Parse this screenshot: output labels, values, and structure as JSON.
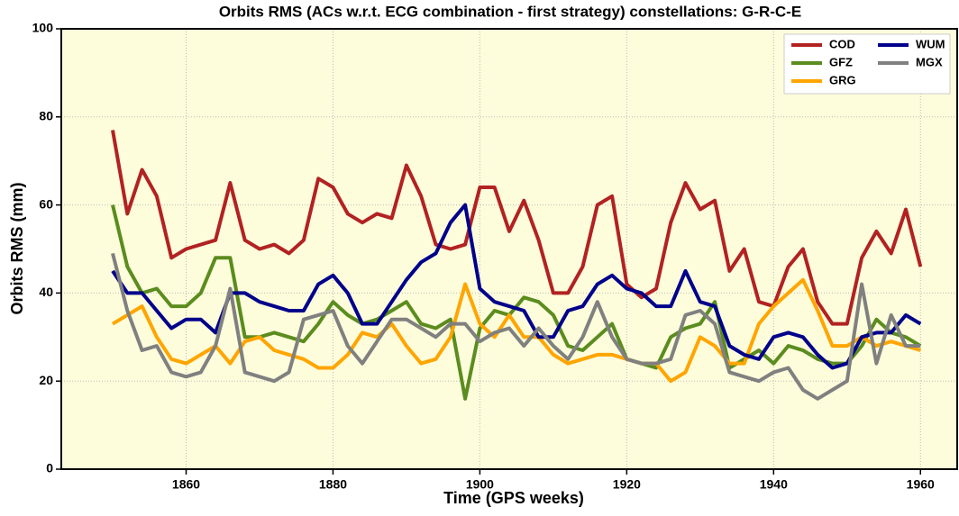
{
  "chart_data": {
    "type": "line",
    "title": "Orbits RMS (ACs w.r.t. ECG combination - first strategy) constellations: G-R-C-E",
    "x_label": "Time (GPS weeks)",
    "y_label": "Orbits RMS (mm)",
    "x": [
      1850,
      1852,
      1854,
      1856,
      1858,
      1860,
      1862,
      1864,
      1866,
      1868,
      1870,
      1872,
      1874,
      1876,
      1878,
      1880,
      1882,
      1884,
      1886,
      1888,
      1890,
      1892,
      1894,
      1896,
      1898,
      1900,
      1902,
      1904,
      1906,
      1908,
      1910,
      1912,
      1914,
      1916,
      1918,
      1920,
      1922,
      1924,
      1926,
      1928,
      1930,
      1932,
      1934,
      1936,
      1938,
      1940,
      1942,
      1944,
      1946,
      1948,
      1950,
      1952,
      1954,
      1956,
      1958,
      1960
    ],
    "series": [
      {
        "name": "COD",
        "color": "#b22222",
        "values": [
          77,
          58,
          68,
          62,
          48,
          50,
          51,
          52,
          65,
          52,
          50,
          51,
          49,
          52,
          66,
          64,
          58,
          56,
          58,
          57,
          69,
          62,
          51,
          50,
          51,
          64,
          64,
          54,
          61,
          52,
          40,
          40,
          46,
          60,
          62,
          42,
          39,
          41,
          56,
          65,
          59,
          61,
          45,
          50,
          38,
          37,
          46,
          50,
          38,
          33,
          33,
          48,
          54,
          49,
          59,
          46
        ]
      },
      {
        "name": "GFZ",
        "color": "#5b8c1e",
        "values": [
          60,
          46,
          40,
          41,
          37,
          37,
          40,
          48,
          48,
          30,
          30,
          31,
          30,
          29,
          33,
          38,
          35,
          33,
          34,
          36,
          38,
          33,
          32,
          34,
          16,
          32,
          36,
          35,
          39,
          38,
          35,
          28,
          27,
          30,
          33,
          25,
          24,
          23,
          30,
          32,
          33,
          38,
          23,
          25,
          27,
          24,
          28,
          27,
          25,
          24,
          24,
          28,
          34,
          31,
          30,
          28
        ]
      },
      {
        "name": "GRG",
        "color": "#ffa500",
        "values": [
          33,
          35,
          37,
          30,
          25,
          24,
          26,
          28,
          24,
          29,
          30,
          27,
          26,
          25,
          23,
          23,
          26,
          31,
          30,
          33,
          28,
          24,
          25,
          30,
          42,
          33,
          30,
          35,
          30,
          30,
          26,
          24,
          25,
          26,
          26,
          25,
          24,
          24,
          20,
          22,
          30,
          28,
          24,
          24,
          33,
          37,
          40,
          43,
          36,
          28,
          28,
          30,
          28,
          29,
          28,
          27
        ]
      },
      {
        "name": "WUM",
        "color": "#00008b",
        "values": [
          45,
          40,
          40,
          36,
          32,
          34,
          34,
          31,
          40,
          40,
          38,
          37,
          36,
          36,
          42,
          44,
          40,
          33,
          33,
          38,
          43,
          47,
          49,
          56,
          60,
          41,
          38,
          37,
          36,
          30,
          30,
          36,
          37,
          42,
          44,
          41,
          40,
          37,
          37,
          45,
          38,
          37,
          28,
          26,
          25,
          30,
          31,
          30,
          26,
          23,
          24,
          30,
          31,
          31,
          35,
          33
        ]
      },
      {
        "name": "MGX",
        "color": "#808080",
        "values": [
          49,
          36,
          27,
          28,
          22,
          21,
          22,
          28,
          41,
          22,
          21,
          20,
          22,
          34,
          35,
          36,
          28,
          24,
          29,
          34,
          34,
          32,
          30,
          33,
          33,
          29,
          31,
          32,
          28,
          32,
          28,
          25,
          30,
          38,
          30,
          25,
          24,
          24,
          25,
          35,
          36,
          33,
          22,
          21,
          20,
          22,
          23,
          18,
          16,
          18,
          20,
          42,
          24,
          35,
          28,
          28
        ]
      }
    ],
    "xlim": [
      1843,
      1965
    ],
    "ylim": [
      0,
      100
    ],
    "xticks": [
      1860,
      1880,
      1900,
      1920,
      1940,
      1960
    ],
    "yticks": [
      0,
      20,
      40,
      60,
      80,
      100
    ],
    "grid": true,
    "legend": "upper right"
  }
}
